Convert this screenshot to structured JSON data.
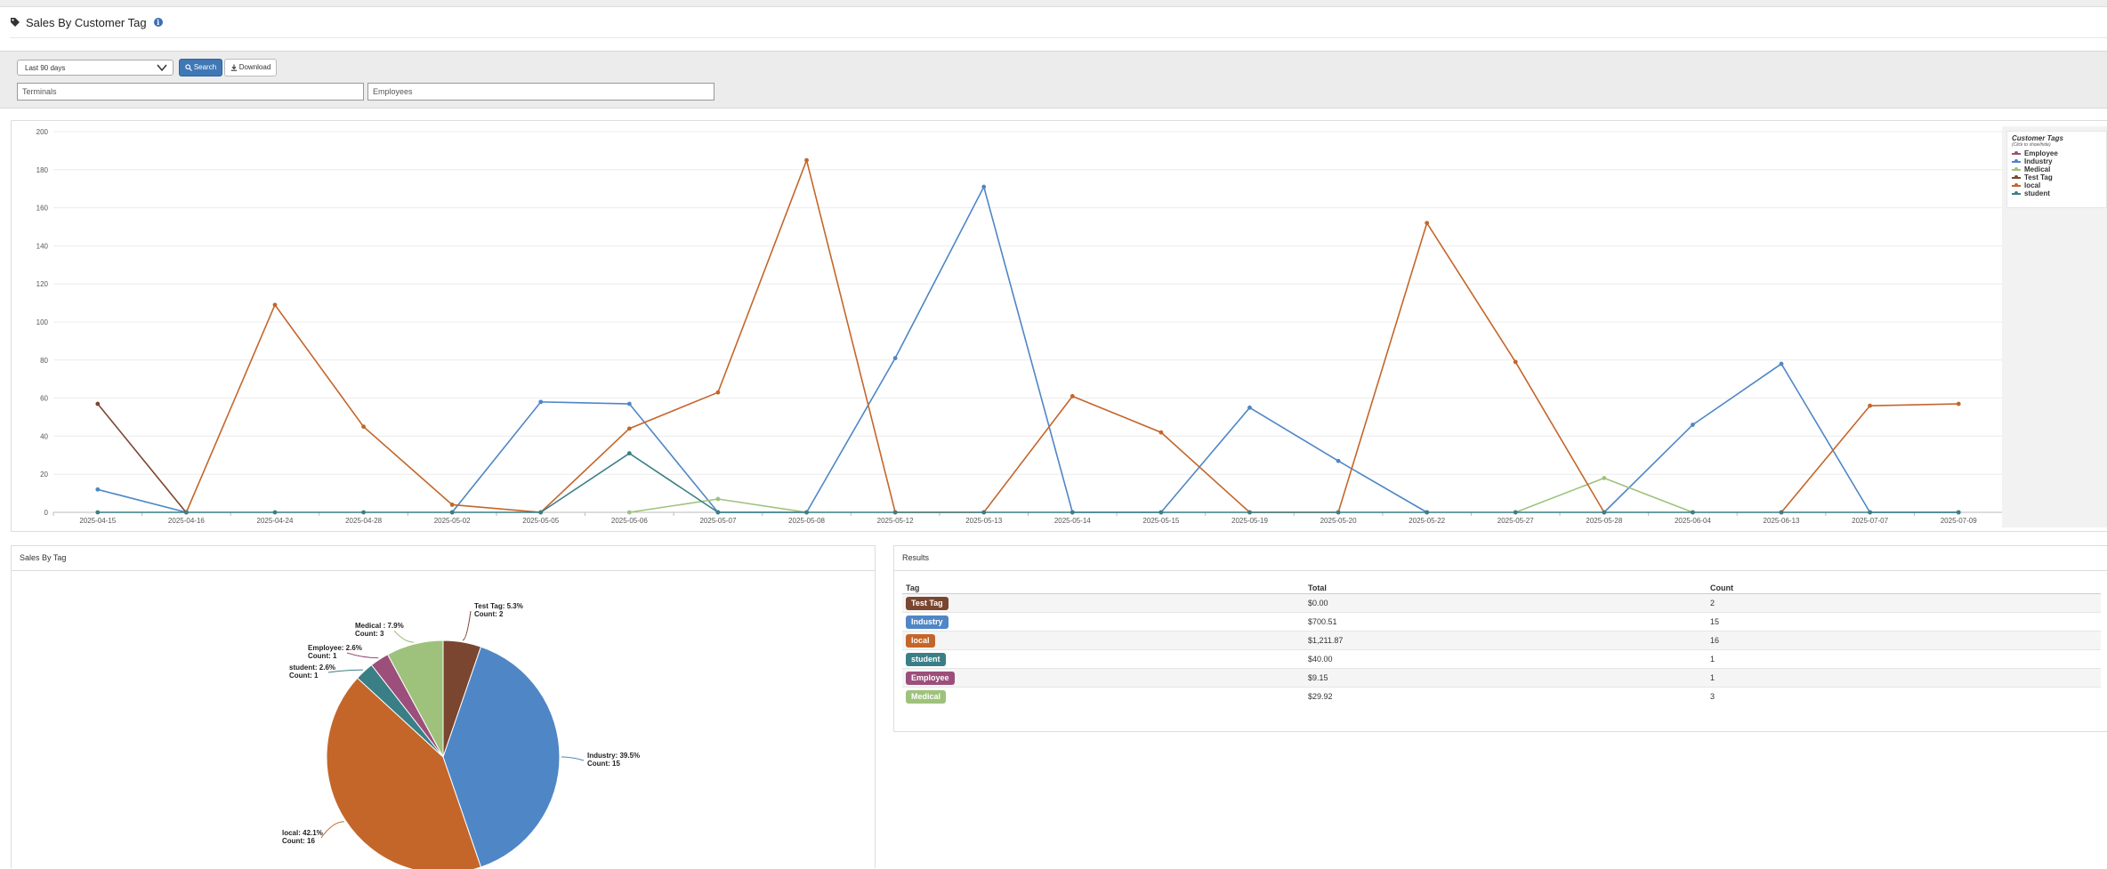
{
  "page": {
    "title": "Sales By Customer Tag"
  },
  "filters": {
    "date_range": "Last 90 days",
    "search_label": "Search",
    "download_label": "Download",
    "terminals_placeholder": "Terminals",
    "employees_placeholder": "Employees"
  },
  "legend": {
    "title": "Customer Tags",
    "subtitle": "(Click to show/hide)"
  },
  "colors": {
    "Employee": "#9b4f7a",
    "Industry": "#4f86c6",
    "Medical": "#9ec27c",
    "Test Tag": "#7a4630",
    "local": "#c4662a",
    "student": "#3b7f86"
  },
  "chart_data": {
    "type": "line",
    "x": [
      "2025-04-15",
      "2025-04-16",
      "2025-04-24",
      "2025-04-28",
      "2025-05-02",
      "2025-05-05",
      "2025-05-06",
      "2025-05-07",
      "2025-05-08",
      "2025-05-12",
      "2025-05-13",
      "2025-05-14",
      "2025-05-15",
      "2025-05-19",
      "2025-05-20",
      "2025-05-22",
      "2025-05-27",
      "2025-05-28",
      "2025-06-04",
      "2025-06-13",
      "2025-07-07",
      "2025-07-09"
    ],
    "y_ticks": [
      0,
      20,
      40,
      60,
      80,
      100,
      120,
      140,
      160,
      180,
      200
    ],
    "ylim": [
      0,
      200
    ],
    "grid": true,
    "legend_position": "right",
    "series": [
      {
        "name": "Employee",
        "values": [
          null,
          null,
          null,
          null,
          null,
          null,
          null,
          null,
          null,
          null,
          null,
          null,
          null,
          null,
          null,
          null,
          null,
          null,
          null,
          null,
          null,
          null
        ]
      },
      {
        "name": "Industry",
        "values": [
          12,
          0,
          null,
          null,
          0,
          58,
          57,
          0,
          0,
          81,
          171,
          0,
          0,
          55,
          27,
          0,
          null,
          0,
          46,
          78,
          0,
          0
        ]
      },
      {
        "name": "Medical",
        "values": [
          null,
          null,
          null,
          null,
          null,
          null,
          0,
          7,
          0,
          null,
          null,
          null,
          null,
          null,
          null,
          null,
          0,
          18,
          0,
          null,
          null,
          null
        ]
      },
      {
        "name": "Test Tag",
        "values": [
          57,
          -1,
          null,
          null,
          null,
          null,
          null,
          null,
          null,
          null,
          null,
          null,
          null,
          null,
          null,
          null,
          null,
          null,
          null,
          null,
          null,
          null
        ]
      },
      {
        "name": "local",
        "values": [
          null,
          0,
          109,
          45,
          4,
          0,
          44,
          63,
          185,
          0,
          0,
          61,
          42,
          0,
          0,
          152,
          79,
          0,
          null,
          0,
          56,
          57
        ]
      },
      {
        "name": "student",
        "values": [
          0,
          0,
          0,
          0,
          0,
          0,
          31,
          0,
          0,
          0,
          0,
          0,
          0,
          0,
          0,
          0,
          0,
          0,
          0,
          0,
          0,
          0
        ]
      }
    ]
  },
  "pie": {
    "title": "Sales By Tag",
    "slices": [
      {
        "name": "Test Tag",
        "label": "Test Tag: 5.3%",
        "count_label": "Count: 2",
        "value": 2
      },
      {
        "name": "Industry",
        "label": "Industry: 39.5%",
        "count_label": "Count: 15",
        "value": 15
      },
      {
        "name": "local",
        "label": "local: 42.1%",
        "count_label": "Count: 16",
        "value": 16
      },
      {
        "name": "student",
        "label": "student: 2.6%",
        "count_label": "Count: 1",
        "value": 1
      },
      {
        "name": "Employee",
        "label": "Employee: 2.6%",
        "count_label": "Count: 1",
        "value": 1
      },
      {
        "name": "Medical",
        "label": "Medical : 7.9%",
        "count_label": "Count: 3",
        "value": 3
      }
    ]
  },
  "results": {
    "title": "Results",
    "headers": {
      "tag": "Tag",
      "total": "Total",
      "count": "Count"
    },
    "rows": [
      {
        "tag": "Test Tag",
        "total": "$0.00",
        "count": "2"
      },
      {
        "tag": "Industry",
        "total": "$700.51",
        "count": "15"
      },
      {
        "tag": "local",
        "total": "$1,211.87",
        "count": "16"
      },
      {
        "tag": "student",
        "total": "$40.00",
        "count": "1"
      },
      {
        "tag": "Employee",
        "total": "$9.15",
        "count": "1"
      },
      {
        "tag": "Medical",
        "total": "$29.92",
        "count": "3"
      }
    ]
  }
}
